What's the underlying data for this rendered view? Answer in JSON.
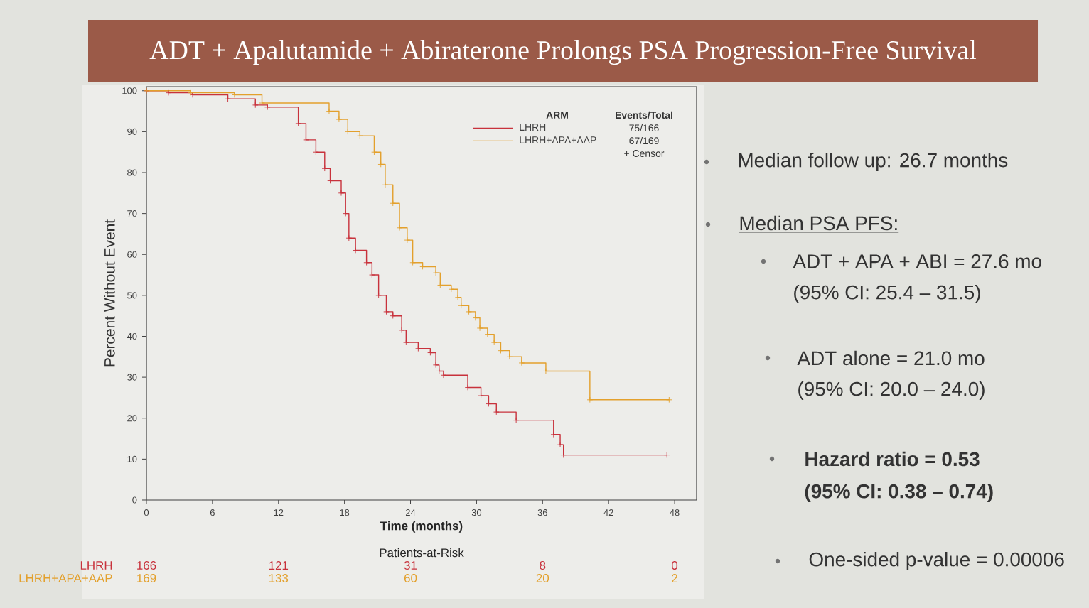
{
  "chart_data": {
    "type": "step",
    "title": "ADT + Apalutamide + Abiraterone Prolongs PSA Progression-Free Survival",
    "xlabel": "Time (months)",
    "ylabel": "Percent Without Event",
    "legend_title": "ARM",
    "series": [
      {
        "name": "LHRH",
        "color": "#c8323c",
        "x": [
          0,
          2,
          4.2,
          7.4,
          9.9,
          11,
          13.8,
          14.5,
          15.4,
          16.2,
          16.7,
          17.7,
          18.1,
          18.4,
          19,
          20,
          20.5,
          21.1,
          21.8,
          22.4,
          23.2,
          23.6,
          24.7,
          25.8,
          26.3,
          26.6,
          27,
          29.2,
          30.4,
          31.1,
          31.8,
          33.6,
          37,
          37.6,
          37.9,
          47.3
        ],
        "values": [
          100,
          99.5,
          99,
          98,
          96.5,
          96,
          92,
          88,
          85,
          81,
          78,
          75,
          70,
          64,
          61,
          58,
          55,
          50,
          46,
          45,
          41.5,
          38.5,
          37,
          36,
          33,
          31.5,
          30.5,
          27.5,
          25.5,
          23.5,
          21.5,
          19.5,
          16,
          13.5,
          11,
          11
        ]
      },
      {
        "name": "LHRH+APA+AAP",
        "color": "#e3a02c",
        "x": [
          0,
          4,
          8,
          10.5,
          16.6,
          17.5,
          18.3,
          19.4,
          20.7,
          21.3,
          21.7,
          22.4,
          23,
          23.7,
          24.2,
          25.1,
          26.3,
          26.7,
          27.7,
          28.3,
          28.6,
          29.3,
          29.9,
          30.3,
          31,
          31.6,
          32.2,
          33,
          34.1,
          36.3,
          40.3,
          47.5
        ],
        "values": [
          100,
          99.5,
          99,
          97,
          95,
          93,
          90,
          89,
          85,
          82,
          77,
          72.5,
          66.5,
          63.5,
          58,
          57,
          55.5,
          52.5,
          51.5,
          49.5,
          47.5,
          46,
          44.5,
          42,
          40.5,
          38.5,
          36.5,
          35,
          33.5,
          31.5,
          24.5,
          24.5
        ]
      }
    ],
    "xlim": [
      0,
      50
    ],
    "ylim": [
      0,
      101
    ],
    "xticks": [
      0,
      6,
      12,
      18,
      24,
      30,
      36,
      42,
      48
    ],
    "yticks": [
      0,
      10,
      20,
      30,
      40,
      50,
      60,
      70,
      80,
      90,
      100
    ],
    "legend": "top right",
    "marker": "cross",
    "annotations": [
      "Events/Total",
      "75/166",
      "67/169",
      "+ Censor",
      "Patients-at-Risk",
      "166",
      "121",
      "31",
      "8",
      "0",
      "169",
      "133",
      "60",
      "20",
      "2",
      "Median follow up: 26.7 months",
      "Median PSA PFS:",
      "ADT + APA + ABI = 27.6 mo",
      "(95% CI: 25.4 – 31.5)",
      "ADT alone = 21.0 mo",
      "(95% CI: 20.0 – 24.0)",
      "Hazard ratio = 0.53",
      "(95% CI: 0.38 – 0.74)",
      "One-sided p-value = 0.00006"
    ]
  }
}
